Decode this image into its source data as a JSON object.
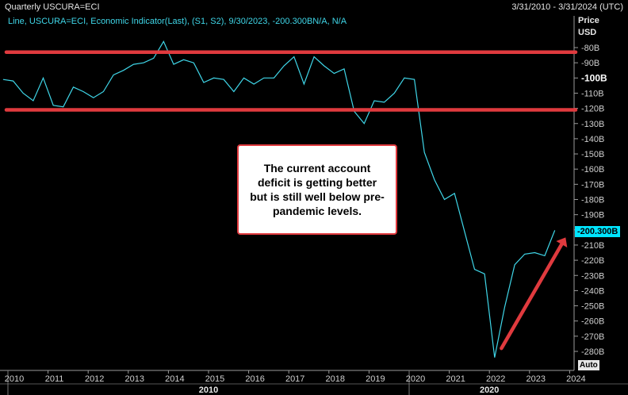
{
  "header": {
    "title": "Quarterly USCURA=ECI",
    "range": "3/31/2010 - 3/31/2024 (UTC)",
    "legend": "Line, USCURA=ECI, Economic Indicator(Last), (S1, S2), 9/30/2023, -200.300BN/A, N/A"
  },
  "axis": {
    "price_label": "Price",
    "currency_label": "USD",
    "last_value_tag": "-200.300B",
    "auto_button": "Auto"
  },
  "annotation": {
    "text": "The current account deficit is getting better but is still well below pre-pandemic levels."
  },
  "colors": {
    "series": "#3fd6e8",
    "reference_lines": "#e03a3e",
    "arrow": "#e03a3e",
    "last_value_tag": "#00e5ff",
    "background": "#000000"
  },
  "chart_data": {
    "type": "line",
    "title": "Quarterly USCURA=ECI",
    "ylabel": "Price USD",
    "xlabel": "",
    "ylim": [
      -285,
      -72
    ],
    "xlim": [
      2010.0,
      2024.25
    ],
    "y_ticks": [
      "-80B",
      "-90B",
      "-100B",
      "-110B",
      "-120B",
      "-130B",
      "-140B",
      "-150B",
      "-160B",
      "-170B",
      "-180B",
      "-190B",
      "-200B",
      "-210B",
      "-220B",
      "-230B",
      "-240B",
      "-250B",
      "-260B",
      "-270B",
      "-280B"
    ],
    "y_tick_values": [
      -80,
      -90,
      -100,
      -110,
      -120,
      -130,
      -140,
      -150,
      -160,
      -170,
      -180,
      -190,
      -200,
      -210,
      -220,
      -230,
      -240,
      -250,
      -260,
      -270,
      -280
    ],
    "x_ticks": [
      "2010",
      "2011",
      "2012",
      "2013",
      "2014",
      "2015",
      "2016",
      "2017",
      "2018",
      "2019",
      "2020",
      "2021",
      "2022",
      "2023",
      "2024"
    ],
    "x_tick_values": [
      2010,
      2011,
      2012,
      2013,
      2014,
      2015,
      2016,
      2017,
      2018,
      2019,
      2020,
      2021,
      2022,
      2023,
      2024
    ],
    "era_labels": [
      {
        "label": "2010",
        "at": 2015.0
      },
      {
        "label": "2020",
        "at": 2022.0
      }
    ],
    "series": [
      {
        "name": "USCURA=ECI",
        "x": [
          2009.88,
          2010.13,
          2010.38,
          2010.63,
          2010.88,
          2011.13,
          2011.38,
          2011.63,
          2011.88,
          2012.13,
          2012.38,
          2012.63,
          2012.88,
          2013.13,
          2013.38,
          2013.63,
          2013.88,
          2014.13,
          2014.38,
          2014.63,
          2014.88,
          2015.13,
          2015.38,
          2015.63,
          2015.88,
          2016.13,
          2016.38,
          2016.63,
          2016.88,
          2017.13,
          2017.38,
          2017.63,
          2017.88,
          2018.13,
          2018.38,
          2018.63,
          2018.88,
          2019.13,
          2019.38,
          2019.63,
          2019.88,
          2020.13,
          2020.38,
          2020.63,
          2020.88,
          2021.13,
          2021.38,
          2021.63,
          2021.88,
          2022.13,
          2022.38,
          2022.63,
          2022.88,
          2023.13,
          2023.38,
          2023.63
        ],
        "values": [
          -101,
          -102,
          -110,
          -115,
          -100,
          -118,
          -119,
          -106,
          -109,
          -113,
          -109,
          -98,
          -95,
          -91,
          -90,
          -87,
          -76,
          -91,
          -88,
          -90,
          -103,
          -100,
          -101,
          -109,
          -100,
          -104,
          -100,
          -100,
          -92,
          -86,
          -104,
          -86,
          -92,
          -97,
          -94,
          -122,
          -130,
          -115,
          -116,
          -110,
          -100,
          -101,
          -149,
          -167,
          -180,
          -176,
          -201,
          -226,
          -229,
          -284,
          -251,
          -223,
          -216,
          -215,
          -217,
          -200.3
        ]
      }
    ],
    "reference_lines": [
      -83,
      -121
    ],
    "arrow": {
      "from": [
        2022.3,
        -278
      ],
      "to": [
        2023.9,
        -205
      ]
    },
    "grid": false,
    "legend_position": "top-left"
  }
}
